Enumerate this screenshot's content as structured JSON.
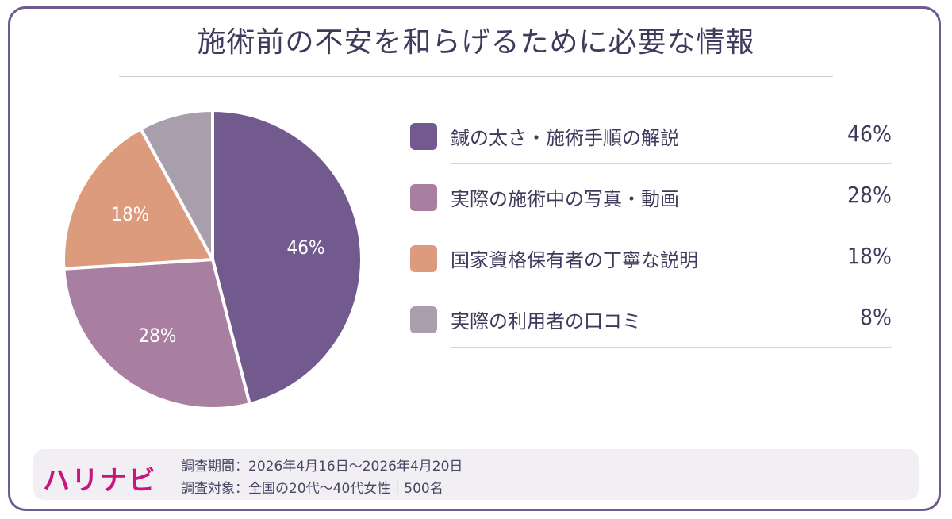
{
  "title": "施術前の不安を和らげるために必要な情報",
  "chart_data": {
    "type": "pie",
    "title": "施術前の不安を和らげるために必要な情報",
    "unit": "%",
    "slices": [
      {
        "label": "鍼の太さ・施術手順の解説",
        "value": 46,
        "display": "46%",
        "color": "#725a8e",
        "show_label": true
      },
      {
        "label": "実際の施術中の写真・動画",
        "value": 28,
        "display": "28%",
        "color": "#a87ea1",
        "show_label": true
      },
      {
        "label": "国家資格保有者の丁寧な説明",
        "value": 18,
        "display": "18%",
        "color": "#dc9b7d",
        "show_label": true
      },
      {
        "label": "実際の利用者の口コミ",
        "value": 8,
        "display": "8%",
        "color": "#a89eac",
        "show_label": false
      }
    ],
    "legend_position": "right",
    "start_angle": "top",
    "direction": "clockwise"
  },
  "footer": {
    "brand": "ハリナビ",
    "survey_period": "調査期間：2026年4月16日～2026年4月20日",
    "survey_target": "調査対象：全国の20代～40代女性｜500名"
  }
}
